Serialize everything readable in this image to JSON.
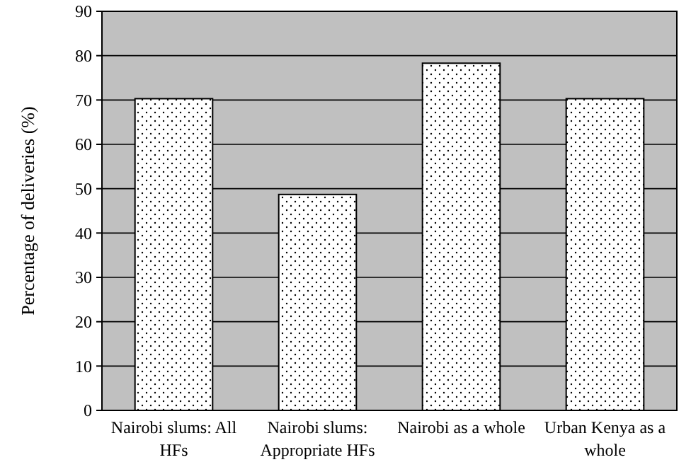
{
  "chart_data": {
    "type": "bar",
    "ylabel": "Percentage of deliveries (%)",
    "categories": [
      "Nairobi slums: All HFs",
      "Nairobi slums: Appropriate HFs",
      "Nairobi as a whole",
      "Urban Kenya as a whole"
    ],
    "values": [
      70.3,
      48.7,
      78.3,
      70.3
    ],
    "color": "#ffffff",
    "ylim": [
      0,
      90
    ],
    "yticks": [
      0,
      10,
      20,
      30,
      40,
      50,
      60,
      70,
      80,
      90
    ],
    "grid": "y"
  }
}
